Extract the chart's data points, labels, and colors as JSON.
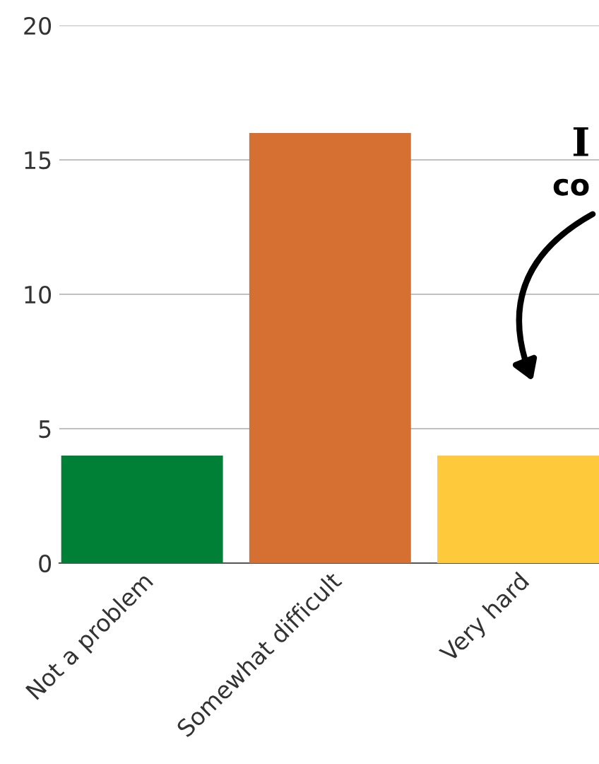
{
  "chart_data": {
    "type": "bar",
    "categories": [
      "Not a problem",
      "Somewhat difficult",
      "Very hard"
    ],
    "values": [
      4,
      16,
      4
    ],
    "colors": [
      "#008037",
      "#d67032",
      "#ffc93c"
    ],
    "ylim": [
      0,
      20
    ],
    "yticks": [
      0,
      5,
      10,
      15,
      20
    ],
    "grid": "y",
    "annotations": [
      "I",
      "co"
    ]
  }
}
